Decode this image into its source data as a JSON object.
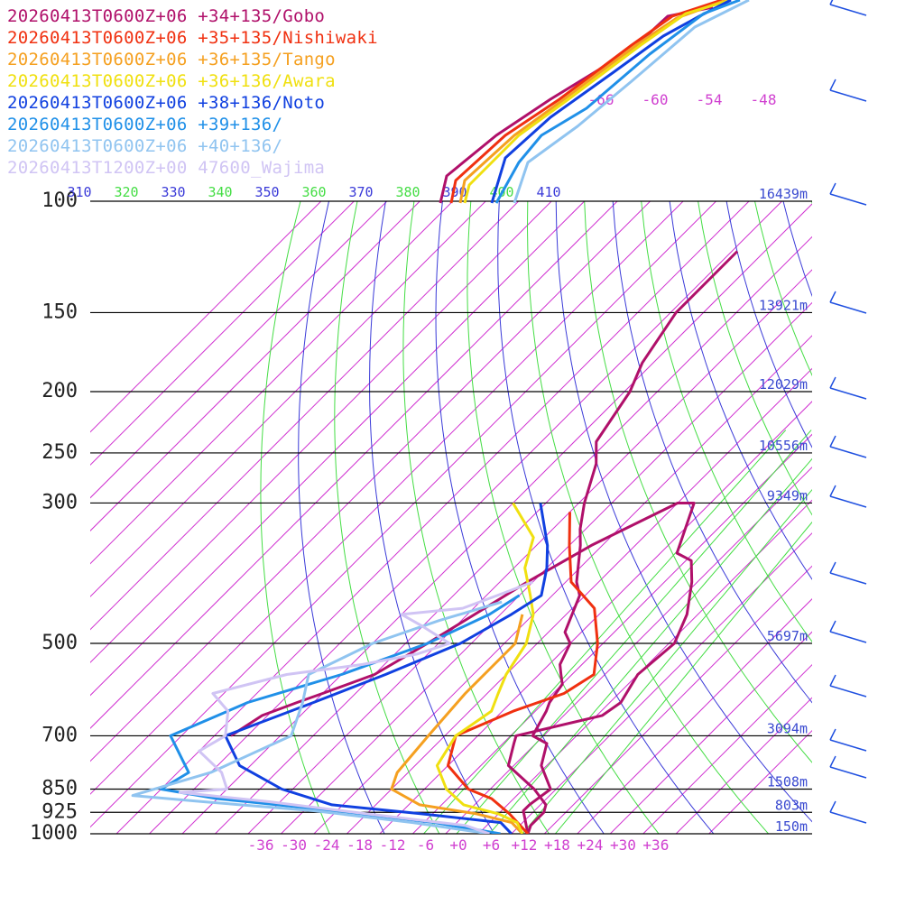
{
  "legend": [
    {
      "label": "20260413T0600Z+06 +34+135/Gobo",
      "color": "#b0106a"
    },
    {
      "label": "20260413T0600Z+06 +35+135/Nishiwaki",
      "color": "#f03010"
    },
    {
      "label": "20260413T0600Z+06 +36+135/Tango",
      "color": "#f5a020"
    },
    {
      "label": "20260413T0600Z+06 +36+136/Awara",
      "color": "#f0e010"
    },
    {
      "label": "20260413T0600Z+06 +38+136/Noto",
      "color": "#1040e0"
    },
    {
      "label": "20260413T0600Z+06 +39+136/",
      "color": "#2090e8"
    },
    {
      "label": "20260413T0600Z+06 +40+136/",
      "color": "#90c4f0"
    },
    {
      "label": "20260413T1200Z+00 47600_Wajima",
      "color": "#d0c4f4"
    }
  ],
  "chart_data": {
    "type": "line",
    "diagram": "skew-T log-p",
    "xlabel": "",
    "ylabel": "",
    "x_ticks": [
      "-36",
      "-30",
      "-24",
      "-18",
      "-12",
      "-6",
      "+0",
      "+6",
      "+12",
      "+18",
      "+24",
      "+30",
      "+36"
    ],
    "x_tick_values": [
      -36,
      -30,
      -24,
      -18,
      -12,
      -6,
      0,
      6,
      12,
      18,
      24,
      30,
      36
    ],
    "p_levels": [
      "100",
      "150",
      "200",
      "250",
      "300",
      "500",
      "700",
      "850",
      "925",
      "1000"
    ],
    "p_level_values": [
      100,
      150,
      200,
      250,
      300,
      500,
      700,
      850,
      925,
      1000
    ],
    "heights": [
      "16439m",
      "13921m",
      "12029m",
      "10556m",
      "9349m",
      "5697m",
      "3094m",
      "1508m",
      "803m",
      "150m"
    ],
    "theta_labels": [
      "310",
      "320",
      "330",
      "340",
      "350",
      "360",
      "370",
      "380",
      "390",
      "400",
      "410"
    ],
    "theta_values": [
      310,
      320,
      330,
      340,
      350,
      360,
      370,
      380,
      390,
      400,
      410
    ],
    "isotherm_top_labels": [
      "-66",
      "-60",
      "-54",
      "-48"
    ],
    "isotherm_top_values": [
      -66,
      -60,
      -54,
      -48
    ],
    "series": [
      {
        "name": "20260413T0600Z+06 +34+135/Gobo",
        "color": "#b0106a",
        "points": [
          [
            1000,
            16
          ],
          [
            925,
            15
          ],
          [
            900,
            14
          ],
          [
            850,
            12.5
          ],
          [
            800,
            3
          ],
          [
            750,
            -3
          ],
          [
            700,
            -3
          ],
          [
            650,
            2
          ],
          [
            600,
            8
          ],
          [
            550,
            8
          ],
          [
            500,
            5
          ],
          [
            450,
            2
          ],
          [
            400,
            -3.5
          ],
          [
            350,
            -10
          ],
          [
            300,
            -17
          ],
          [
            300,
            -24
          ],
          [
            350,
            -20
          ],
          [
            400,
            -16
          ],
          [
            450,
            -12
          ],
          [
            500,
            -8
          ],
          [
            550,
            -6
          ],
          [
            600,
            -4
          ],
          [
            650,
            -3
          ],
          [
            700,
            -1
          ],
          [
            750,
            0
          ],
          [
            800,
            -1
          ],
          [
            850,
            -1
          ],
          [
            900,
            -1
          ],
          [
            1000,
            -2
          ]
        ]
      },
      {
        "name": "20260413T0600Z+06 +35+135/Nishiwaki",
        "color": "#f03010"
      }
    ]
  }
}
